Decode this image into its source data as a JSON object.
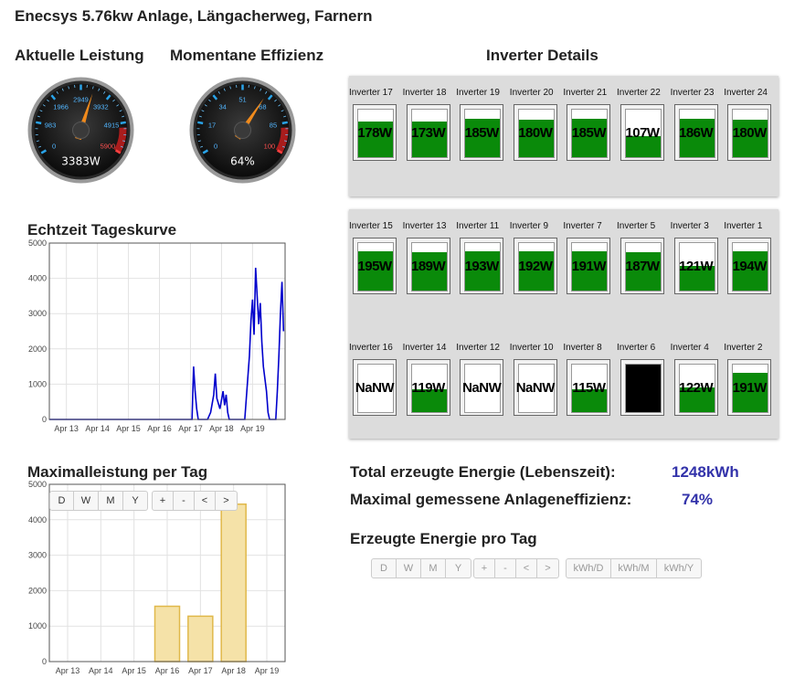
{
  "page_title": "Enecsys 5.76kw Anlage, Längacherweg, Farnern",
  "gauges": [
    {
      "title": "Aktuelle Leistung",
      "readout": "3383W",
      "ticks": [
        "0",
        "983",
        "1966",
        "2949",
        "3932",
        "4915",
        "5900"
      ],
      "value": 3383,
      "max": 5900
    },
    {
      "title": "Momentane Effizienz",
      "readout": "64%",
      "ticks": [
        "0",
        "17",
        "34",
        "51",
        "68",
        "85",
        "100"
      ],
      "value": 64,
      "max": 100
    }
  ],
  "inverter_details_title": "Inverter Details",
  "inverter_panels": [
    {
      "rows": [
        [
          {
            "name": "Inverter 17",
            "text": "178W",
            "level": 0.75
          },
          {
            "name": "Inverter 18",
            "text": "173W",
            "level": 0.75
          },
          {
            "name": "Inverter 19",
            "text": "185W",
            "level": 0.8
          },
          {
            "name": "Inverter 20",
            "text": "180W",
            "level": 0.78
          },
          {
            "name": "Inverter 21",
            "text": "185W",
            "level": 0.8
          },
          {
            "name": "Inverter 22",
            "text": "107W",
            "level": 0.45
          },
          {
            "name": "Inverter 23",
            "text": "186W",
            "level": 0.8
          },
          {
            "name": "Inverter 24",
            "text": "180W",
            "level": 0.78
          }
        ]
      ]
    },
    {
      "rows": [
        [
          {
            "name": "Inverter 15",
            "text": "195W",
            "level": 0.82
          },
          {
            "name": "Inverter 13",
            "text": "189W",
            "level": 0.8
          },
          {
            "name": "Inverter 11",
            "text": "193W",
            "level": 0.82
          },
          {
            "name": "Inverter 9",
            "text": "192W",
            "level": 0.82
          },
          {
            "name": "Inverter 7",
            "text": "191W",
            "level": 0.82
          },
          {
            "name": "Inverter 5",
            "text": "187W",
            "level": 0.8
          },
          {
            "name": "Inverter 3",
            "text": "121W",
            "level": 0.52
          },
          {
            "name": "Inverter 1",
            "text": "194W",
            "level": 0.82
          }
        ],
        [
          {
            "name": "Inverter 16",
            "text": "NaNW",
            "level": 0
          },
          {
            "name": "Inverter 14",
            "text": "119W",
            "level": 0.48
          },
          {
            "name": "Inverter 12",
            "text": "NaNW",
            "level": 0
          },
          {
            "name": "Inverter 10",
            "text": "NaNW",
            "level": 0
          },
          {
            "name": "Inverter 8",
            "text": "115W",
            "level": 0.48
          },
          {
            "name": "Inverter 6",
            "text": "",
            "level": 1,
            "black": true
          },
          {
            "name": "Inverter 4",
            "text": "122W",
            "level": 0.52
          },
          {
            "name": "Inverter 2",
            "text": "191W",
            "level": 0.82
          }
        ]
      ]
    }
  ],
  "realtime_chart_title": "Echtzeit Tageskurve",
  "max_chart_title": "Maximalleistung per Tag",
  "max_chart_buttons": {
    "period": [
      "D",
      "W",
      "M",
      "Y"
    ],
    "nav": [
      "+",
      "-",
      "<",
      ">"
    ]
  },
  "total_energy_label": "Total erzeugte Energie (Lebenszeit):",
  "total_energy_value": "1248kWh",
  "max_eff_label": "Maximal gemessene Anlageneffizienz:",
  "max_eff_value": "74%",
  "daily_energy_title": "Erzeugte Energie pro Tag",
  "daily_buttons": {
    "period": [
      "D",
      "W",
      "M",
      "Y"
    ],
    "nav": [
      "+",
      "-",
      "<",
      ">"
    ],
    "unit": [
      "kWh/D",
      "kWh/M",
      "kWh/Y"
    ]
  },
  "colors": {
    "accent_value": "#3333aa",
    "inverter_fill": "#0a8a0a",
    "line": "#0000cc",
    "bar_fill": "#f5e2a8",
    "bar_stroke": "#e0b84a"
  },
  "chart_data": [
    {
      "type": "line",
      "title": "Echtzeit Tageskurve",
      "x_ticks": [
        "Apr 13",
        "Apr 14",
        "Apr 15",
        "Apr 16",
        "Apr 17",
        "Apr 18",
        "Apr 19"
      ],
      "y_ticks": [
        "0",
        "1000",
        "2000",
        "3000",
        "4000",
        "5000"
      ],
      "ylim": [
        0,
        5000
      ],
      "xlim": [
        0,
        7.6
      ],
      "series": [
        {
          "points": [
            [
              0,
              0
            ],
            [
              4.6,
              0
            ],
            [
              4.65,
              1500
            ],
            [
              4.7,
              800
            ],
            [
              4.75,
              300
            ],
            [
              4.8,
              0
            ],
            [
              5.1,
              0
            ],
            [
              5.2,
              200
            ],
            [
              5.3,
              700
            ],
            [
              5.35,
              1300
            ],
            [
              5.4,
              600
            ],
            [
              5.5,
              300
            ],
            [
              5.6,
              800
            ],
            [
              5.65,
              400
            ],
            [
              5.7,
              700
            ],
            [
              5.75,
              200
            ],
            [
              5.8,
              0
            ],
            [
              6.3,
              0
            ],
            [
              6.4,
              1200
            ],
            [
              6.45,
              1800
            ],
            [
              6.5,
              2800
            ],
            [
              6.55,
              3400
            ],
            [
              6.6,
              2400
            ],
            [
              6.65,
              4300
            ],
            [
              6.7,
              3500
            ],
            [
              6.75,
              2700
            ],
            [
              6.8,
              3300
            ],
            [
              6.85,
              2200
            ],
            [
              6.9,
              1500
            ],
            [
              7.0,
              800
            ],
            [
              7.05,
              200
            ],
            [
              7.1,
              0
            ],
            [
              7.3,
              0
            ],
            [
              7.35,
              800
            ],
            [
              7.4,
              1800
            ],
            [
              7.45,
              3000
            ],
            [
              7.5,
              3900
            ],
            [
              7.55,
              2500
            ]
          ]
        }
      ],
      "grid": true
    },
    {
      "type": "bar",
      "title": "Maximalleistung per Tag",
      "categories": [
        "Apr 13",
        "Apr 14",
        "Apr 15",
        "Apr 16",
        "Apr 17",
        "Apr 18",
        "Apr 19"
      ],
      "values": [
        0,
        0,
        0,
        1560,
        1280,
        4440,
        0
      ],
      "y_ticks": [
        "0",
        "1000",
        "2000",
        "3000",
        "4000",
        "5000"
      ],
      "ylim": [
        0,
        5000
      ],
      "grid": true
    }
  ]
}
